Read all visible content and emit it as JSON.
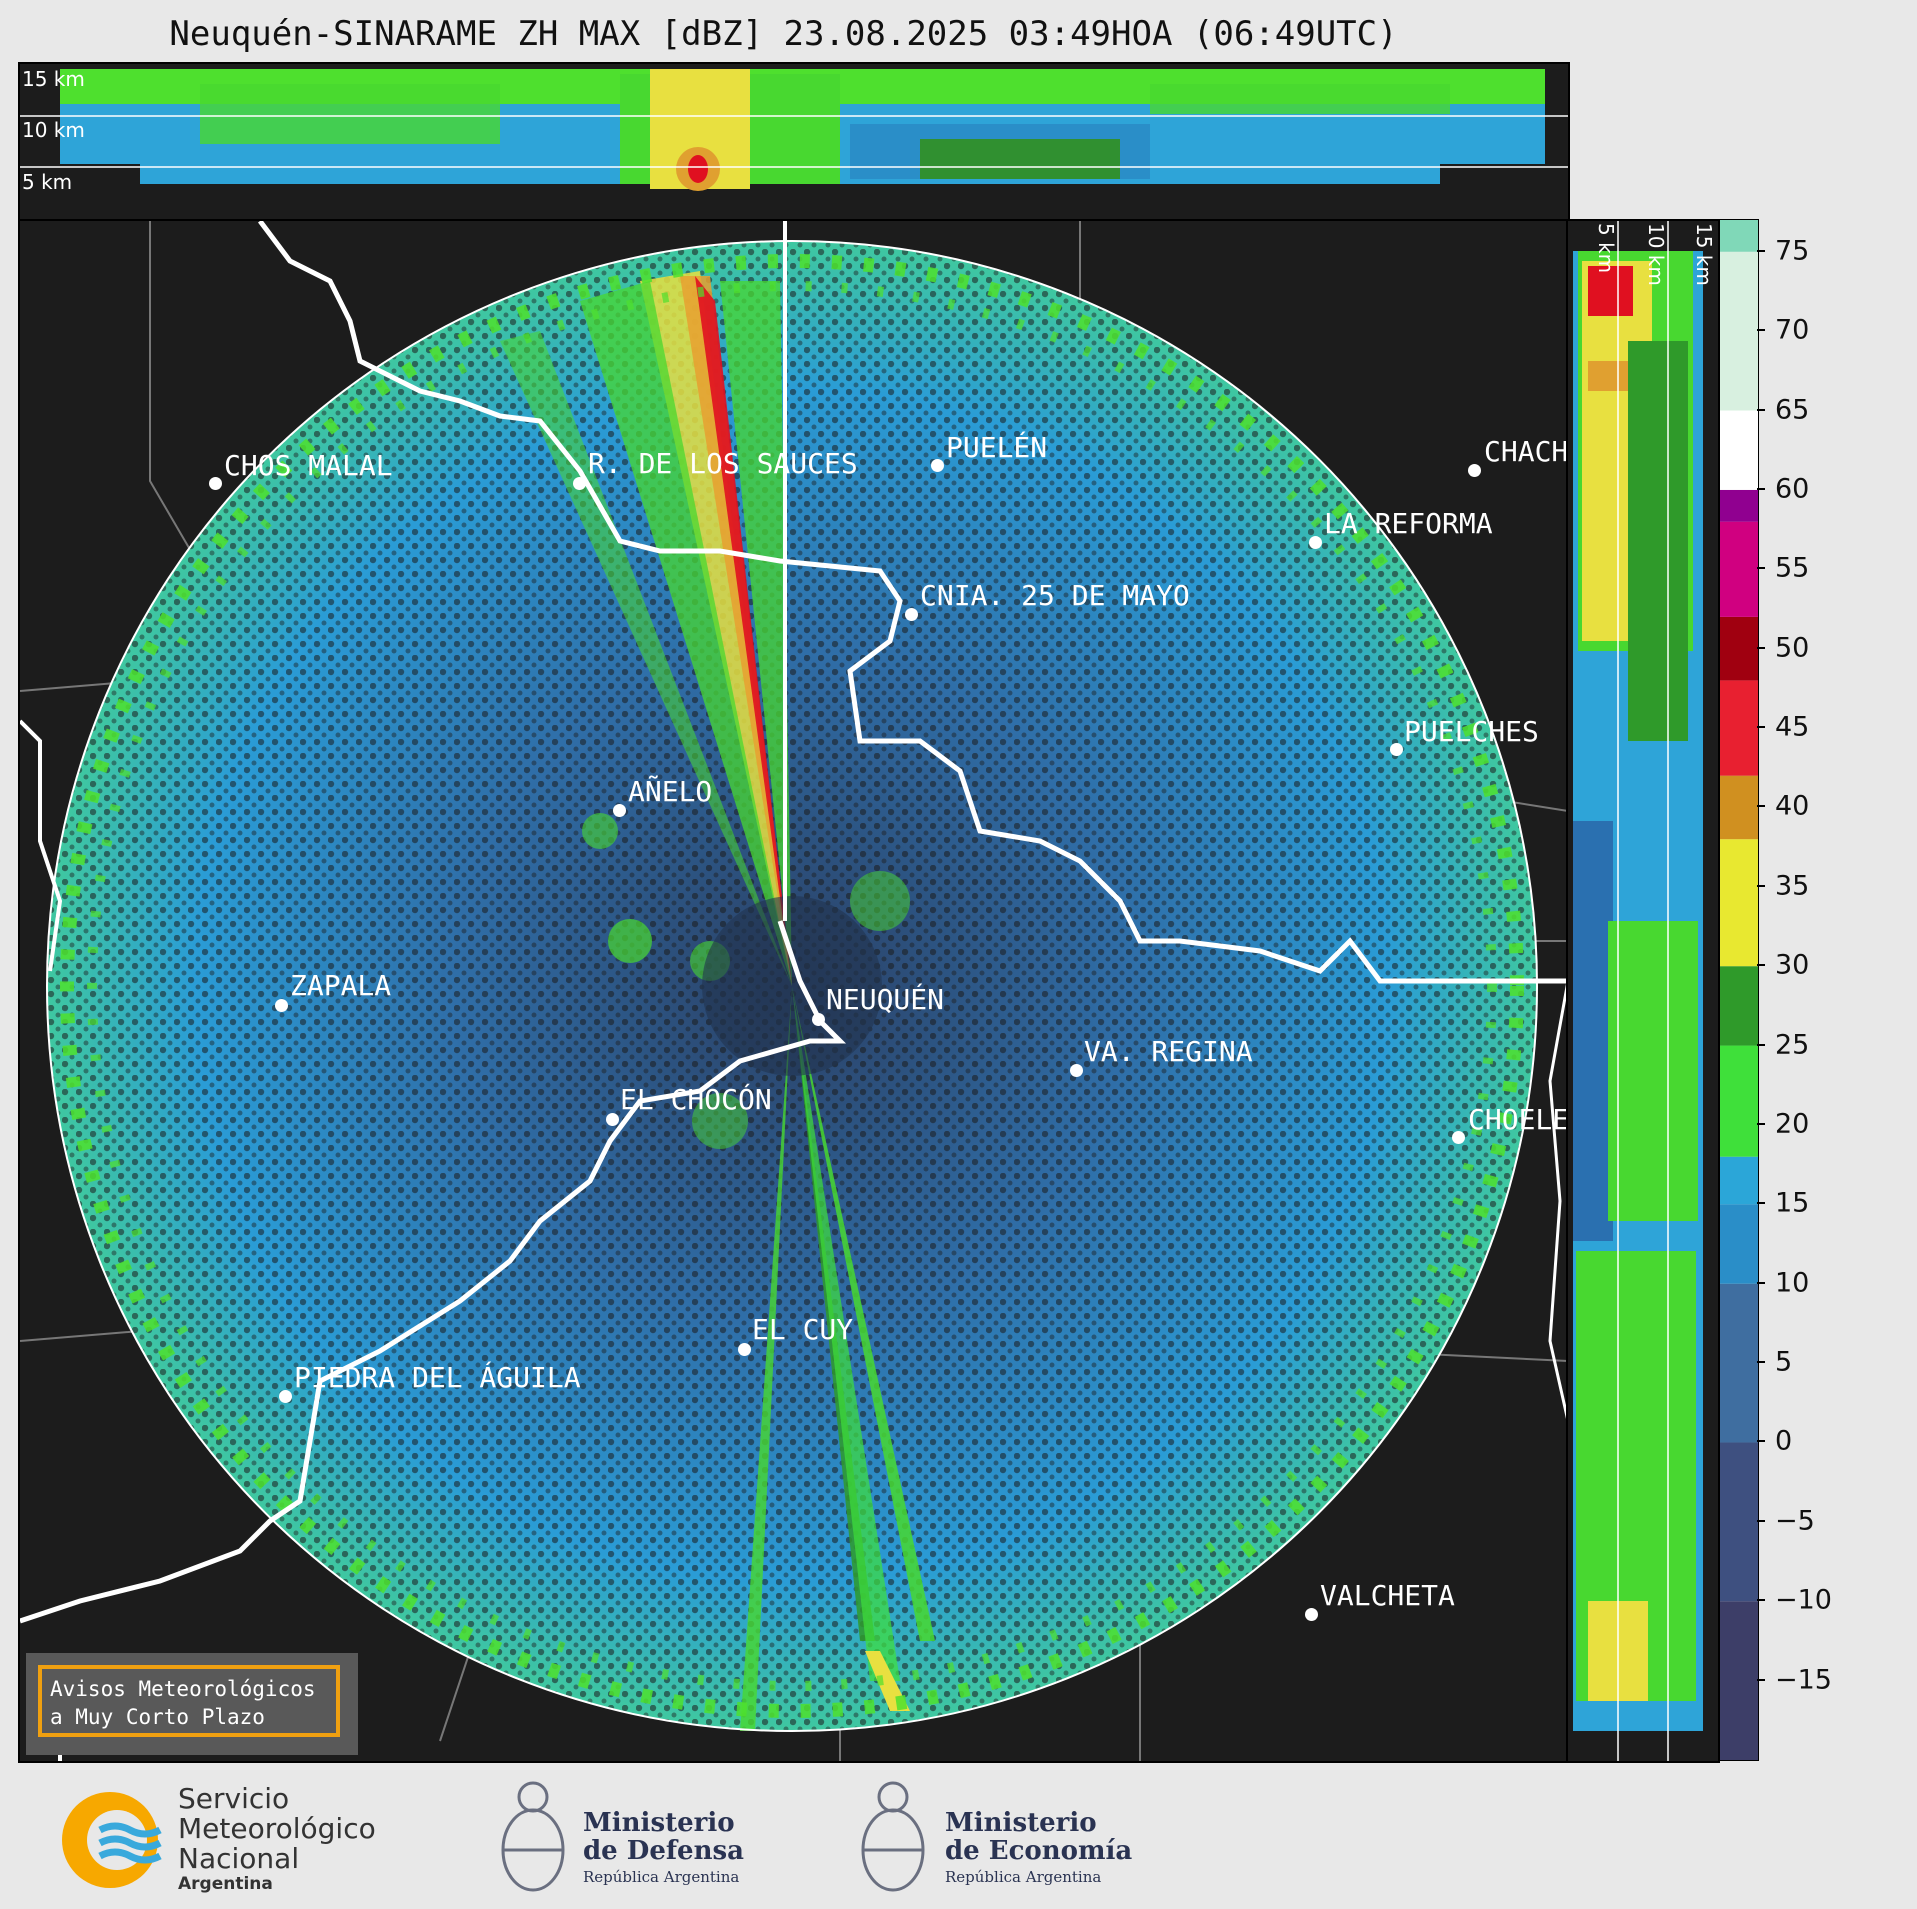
{
  "title": "Neuquén-SINARAME ZH MAX [dBZ] 23.08.2025 03:49HOA (06:49UTC)",
  "top_panel": {
    "height_labels": [
      "15 km",
      "10 km",
      "5 km"
    ]
  },
  "side_panel": {
    "height_labels": [
      "5 km",
      "10 km",
      "15 km"
    ]
  },
  "colorbar": {
    "ticks": [
      "75",
      "70",
      "65",
      "60",
      "55",
      "50",
      "45",
      "40",
      "35",
      "30",
      "25",
      "20",
      "15",
      "10",
      "5",
      "0",
      "−5",
      "−10",
      "−15"
    ],
    "range": [
      -20,
      77
    ],
    "colors": {
      "-20": "#3d3e68",
      "-10": "#3e5080",
      "0": "#3f6ea0",
      "10": "#2a8ec8",
      "15": "#2ba6d8",
      "18": "#3fe03a",
      "25": "#2f9a2a",
      "30": "#e8e830",
      "38": "#d09020",
      "42": "#e82030",
      "48": "#a00010",
      "52": "#d00080",
      "58": "#900090",
      "60": "#ffffff",
      "65": "#d8f0e0",
      "75": "#80d8b8"
    }
  },
  "cities": [
    {
      "name": "CHOS MALAL"
    },
    {
      "name": "R. DE LOS SAUCES"
    },
    {
      "name": "PUELÉN"
    },
    {
      "name": "CHACH"
    },
    {
      "name": "LA REFORMA"
    },
    {
      "name": "CNIA. 25 DE MAYO"
    },
    {
      "name": "PUELCHES"
    },
    {
      "name": "AÑELO"
    },
    {
      "name": "ZAPALA"
    },
    {
      "name": "NEUQUÉN"
    },
    {
      "name": "VA. REGINA"
    },
    {
      "name": "EL CHOCÓN"
    },
    {
      "name": "CHOELE"
    },
    {
      "name": "EL CUY"
    },
    {
      "name": "PIEDRA DEL ÁGUILA"
    },
    {
      "name": "VALCHETA"
    }
  ],
  "notice": {
    "line1": "Avisos Meteorológicos",
    "line2": "a Muy Corto Plazo"
  },
  "footer": {
    "smn": {
      "line1": "Servicio",
      "line2": "Meteorológico",
      "line3": "Nacional",
      "line4": "Argentina"
    },
    "defensa": {
      "line1": "Ministerio",
      "line2": "de Defensa",
      "line3": "República Argentina"
    },
    "economia": {
      "line1": "Ministerio",
      "line2": "de Economía",
      "line3": "República Argentina"
    }
  }
}
